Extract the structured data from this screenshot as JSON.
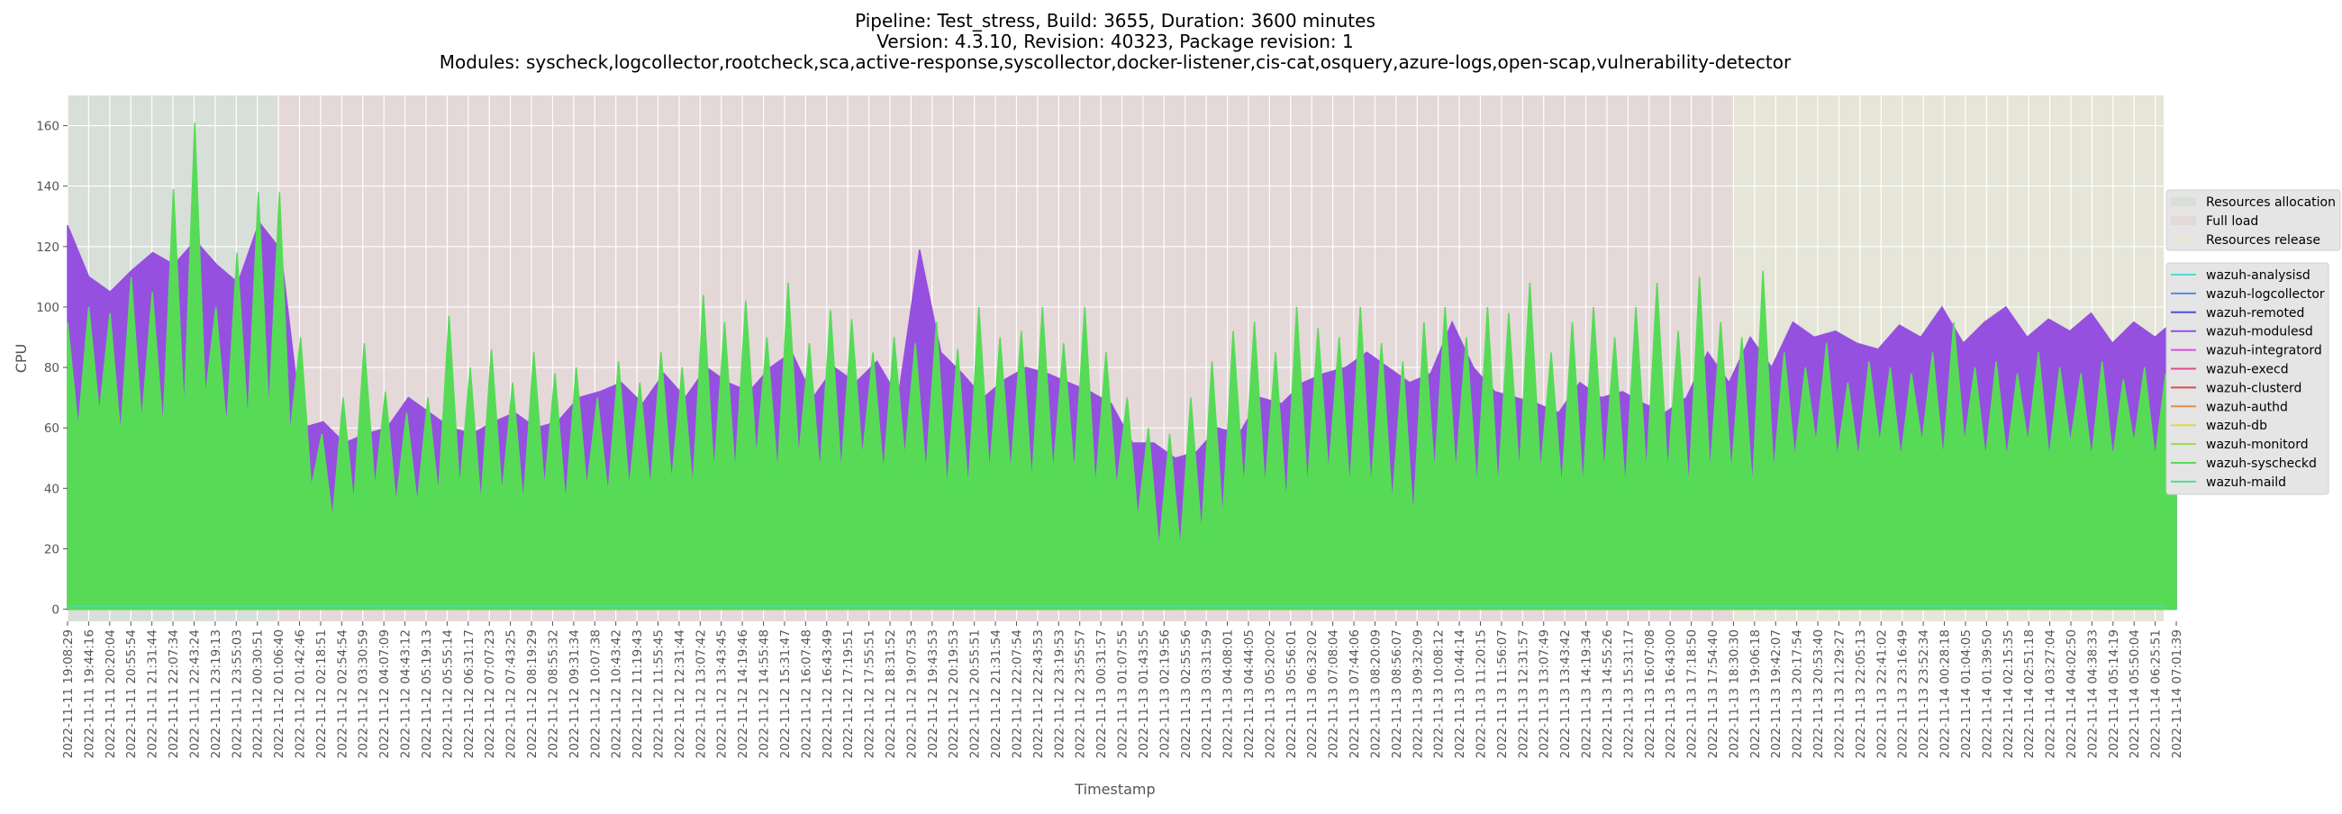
{
  "chart_data": {
    "type": "line",
    "title_lines": [
      "Pipeline: Test_stress, Build: 3655, Duration: 3600 minutes",
      "Version: 4.3.10, Revision: 40323, Package revision: 1",
      "Modules: syscheck,logcollector,rootcheck,sca,active-response,syscollector,docker-listener,cis-cat,osquery,azure-logs,open-scap,vulnerability-detector"
    ],
    "xlabel": "Timestamp",
    "ylabel": "CPU",
    "ylim": [
      -4,
      170
    ],
    "yticks": [
      0,
      20,
      40,
      60,
      80,
      100,
      120,
      140,
      160
    ],
    "grid": true,
    "x_ticks": [
      "2022-11-11 19:08:29",
      "2022-11-11 19:44:16",
      "2022-11-11 20:20:04",
      "2022-11-11 20:55:54",
      "2022-11-11 21:31:44",
      "2022-11-11 22:07:34",
      "2022-11-11 22:43:24",
      "2022-11-11 23:19:13",
      "2022-11-11 23:55:03",
      "2022-11-12 00:30:51",
      "2022-11-12 01:06:40",
      "2022-11-12 01:42:46",
      "2022-11-12 02:18:51",
      "2022-11-12 02:54:54",
      "2022-11-12 03:30:59",
      "2022-11-12 04:07:09",
      "2022-11-12 04:43:12",
      "2022-11-12 05:19:13",
      "2022-11-12 05:55:14",
      "2022-11-12 06:31:17",
      "2022-11-12 07:07:23",
      "2022-11-12 07:43:25",
      "2022-11-12 08:19:29",
      "2022-11-12 08:55:32",
      "2022-11-12 09:31:34",
      "2022-11-12 10:07:38",
      "2022-11-12 10:43:42",
      "2022-11-12 11:19:43",
      "2022-11-12 11:55:45",
      "2022-11-12 12:31:44",
      "2022-11-12 13:07:42",
      "2022-11-12 13:43:45",
      "2022-11-12 14:19:46",
      "2022-11-12 14:55:48",
      "2022-11-12 15:31:47",
      "2022-11-12 16:07:48",
      "2022-11-12 16:43:49",
      "2022-11-12 17:19:51",
      "2022-11-12 17:55:51",
      "2022-11-12 18:31:52",
      "2022-11-12 19:07:53",
      "2022-11-12 19:43:53",
      "2022-11-12 20:19:53",
      "2022-11-12 20:55:51",
      "2022-11-12 21:31:54",
      "2022-11-12 22:07:54",
      "2022-11-12 22:43:53",
      "2022-11-12 23:19:53",
      "2022-11-12 23:55:57",
      "2022-11-13 00:31:57",
      "2022-11-13 01:07:55",
      "2022-11-13 01:43:55",
      "2022-11-13 02:19:56",
      "2022-11-13 02:55:56",
      "2022-11-13 03:31:59",
      "2022-11-13 04:08:01",
      "2022-11-13 04:44:05",
      "2022-11-13 05:20:02",
      "2022-11-13 05:56:01",
      "2022-11-13 06:32:02",
      "2022-11-13 07:08:04",
      "2022-11-13 07:44:06",
      "2022-11-13 08:20:09",
      "2022-11-13 08:56:07",
      "2022-11-13 09:32:09",
      "2022-11-13 10:08:12",
      "2022-11-13 10:44:14",
      "2022-11-13 11:20:15",
      "2022-11-13 11:56:07",
      "2022-11-13 12:31:57",
      "2022-11-13 13:07:49",
      "2022-11-13 13:43:42",
      "2022-11-13 14:19:34",
      "2022-11-13 14:55:26",
      "2022-11-13 15:31:17",
      "2022-11-13 16:07:08",
      "2022-11-13 16:43:00",
      "2022-11-13 17:18:50",
      "2022-11-13 17:54:40",
      "2022-11-13 18:30:30",
      "2022-11-13 19:06:18",
      "2022-11-13 19:42:07",
      "2022-11-13 20:17:54",
      "2022-11-13 20:53:40",
      "2022-11-13 21:29:27",
      "2022-11-13 22:05:13",
      "2022-11-13 22:41:02",
      "2022-11-13 23:16:49",
      "2022-11-13 23:52:34",
      "2022-11-14 00:28:18",
      "2022-11-14 01:04:05",
      "2022-11-14 01:39:50",
      "2022-11-14 02:15:35",
      "2022-11-14 02:51:18",
      "2022-11-14 03:27:04",
      "2022-11-14 04:02:50",
      "2022-11-14 04:38:33",
      "2022-11-14 05:14:19",
      "2022-11-14 05:50:04",
      "2022-11-14 06:25:51",
      "2022-11-14 07:01:39"
    ],
    "xlim_tick_index": [
      0,
      99.4
    ],
    "phases": [
      {
        "name": "Resources allocation",
        "start_tick": 0,
        "end_tick": 9.9,
        "color": "#d8dfd8"
      },
      {
        "name": "Full load",
        "start_tick": 9.9,
        "end_tick": 79,
        "color": "#e4d8d9"
      },
      {
        "name": "Resources release",
        "start_tick": 79,
        "end_tick": 99.4,
        "color": "#e5e5d8"
      }
    ],
    "series": [
      {
        "name": "wazuh-analysisd",
        "color": "#4ddbd8",
        "values": null
      },
      {
        "name": "wazuh-logcollector",
        "color": "#4a90e2",
        "values": null
      },
      {
        "name": "wazuh-remoted",
        "color": "#4b4fe0",
        "values": null
      },
      {
        "name": "wazuh-modulesd",
        "color": "#9550e0",
        "values": [
          127,
          110,
          105,
          112,
          118,
          114,
          122,
          114,
          108,
          128,
          119,
          60,
          62,
          55,
          58,
          60,
          70,
          65,
          60,
          58,
          62,
          65,
          60,
          62,
          70,
          72,
          75,
          68,
          78,
          70,
          80,
          75,
          72,
          80,
          85,
          70,
          80,
          75,
          82,
          70,
          119,
          85,
          78,
          70,
          76,
          80,
          78,
          75,
          72,
          68,
          55,
          55,
          50,
          52,
          60,
          58,
          70,
          68,
          75,
          78,
          80,
          85,
          80,
          75,
          78,
          95,
          80,
          72,
          70,
          68,
          65,
          75,
          70,
          72,
          68,
          65,
          70,
          85,
          75,
          90,
          80,
          95,
          90,
          92,
          88,
          86,
          94,
          90,
          100,
          88,
          95,
          100,
          90,
          96,
          92,
          98,
          88,
          95,
          90,
          96
        ]
      },
      {
        "name": "wazuh-integratord",
        "color": "#e04ce0",
        "values": null
      },
      {
        "name": "wazuh-execd",
        "color": "#e04c8c",
        "values": null
      },
      {
        "name": "wazuh-clusterd",
        "color": "#e04c4c",
        "values": null
      },
      {
        "name": "wazuh-authd",
        "color": "#e0904c",
        "values": null
      },
      {
        "name": "wazuh-db",
        "color": "#dcd84c",
        "values": null
      },
      {
        "name": "wazuh-monitord",
        "color": "#98dc4c",
        "values": null
      },
      {
        "name": "wazuh-syscheckd",
        "color": "#57db57",
        "values": [
          95,
          60,
          100,
          65,
          98,
          58,
          110,
          62,
          105,
          60,
          139,
          65,
          161,
          70,
          100,
          60,
          118,
          62,
          138,
          65,
          138,
          58,
          90,
          40,
          58,
          30,
          70,
          35,
          88,
          40,
          72,
          35,
          65,
          35,
          70,
          38,
          97,
          40,
          80,
          35,
          86,
          38,
          75,
          35,
          85,
          40,
          78,
          35,
          80,
          40,
          70,
          38,
          82,
          40,
          75,
          40,
          85,
          42,
          80,
          40,
          104,
          45,
          95,
          45,
          102,
          50,
          90,
          45,
          108,
          50,
          88,
          45,
          99,
          45,
          96,
          50,
          85,
          45,
          90,
          50,
          88,
          45,
          95,
          40,
          86,
          40,
          100,
          45,
          90,
          45,
          92,
          42,
          100,
          45,
          88,
          45,
          100,
          40,
          85,
          40,
          70,
          30,
          60,
          20,
          58,
          20,
          70,
          25,
          82,
          30,
          92,
          40,
          95,
          40,
          85,
          35,
          100,
          40,
          93,
          45,
          90,
          40,
          100,
          40,
          88,
          35,
          82,
          30,
          95,
          45,
          100,
          45,
          90,
          40,
          100,
          40,
          98,
          45,
          108,
          45,
          85,
          40,
          95,
          40,
          100,
          45,
          90,
          40,
          100,
          45,
          108,
          45,
          92,
          40,
          110,
          45,
          95,
          45,
          90,
          40,
          112,
          45,
          85,
          50,
          80,
          55,
          88,
          50,
          75,
          50,
          82,
          55,
          80,
          50,
          78,
          55,
          85,
          50,
          95,
          55,
          80,
          50,
          82,
          50,
          78,
          55,
          85,
          50,
          80,
          55,
          78,
          50,
          82,
          50,
          76,
          55,
          80,
          50,
          78,
          50
        ]
      },
      {
        "name": "wazuh-maild",
        "color": "#4cdc98",
        "values": [
          1
        ]
      }
    ]
  }
}
